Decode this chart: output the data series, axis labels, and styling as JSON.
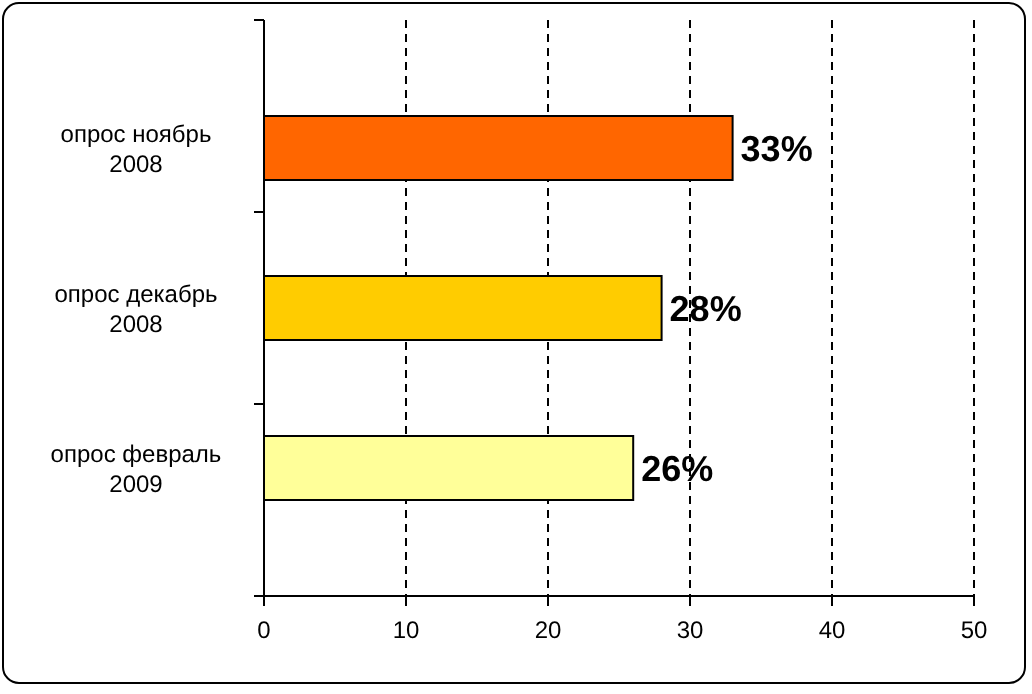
{
  "chart_data": {
    "type": "bar",
    "orientation": "horizontal",
    "categories": [
      "опрос ноябрь 2008",
      "опрос декабрь 2008",
      "опрос февраль 2009"
    ],
    "values": [
      33,
      28,
      26
    ],
    "colors": [
      "#ff6600",
      "#ffcc00",
      "#ffff99"
    ],
    "value_labels": [
      "33%",
      "28%",
      "26%"
    ],
    "xlim": [
      0,
      50
    ],
    "xticks": [
      0,
      10,
      20,
      30,
      40,
      50
    ],
    "grid": "x"
  }
}
